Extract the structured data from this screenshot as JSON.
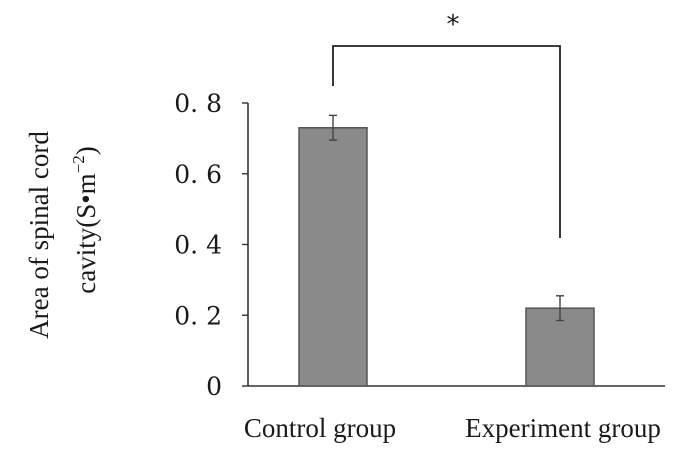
{
  "chart_data": {
    "type": "bar",
    "categories": [
      "Control group",
      "Experiment group"
    ],
    "values": [
      0.73,
      0.22
    ],
    "errors": [
      0.035,
      0.035
    ],
    "ylim": [
      0,
      0.8
    ],
    "yticks": [
      {
        "value": 0,
        "label": "0"
      },
      {
        "value": 0.2,
        "label": "0. 2"
      },
      {
        "value": 0.4,
        "label": "0. 4"
      },
      {
        "value": 0.6,
        "label": "0. 6"
      },
      {
        "value": 0.8,
        "label": "0. 8"
      }
    ],
    "ylabel_line1": "Area of spinal cord",
    "ylabel_line2": "cavity(S•m",
    "ylabel_sup": "−2",
    "ylabel_close": ")",
    "xlabel": "",
    "title": "",
    "significance": {
      "between": [
        "Control group",
        "Experiment group"
      ],
      "mark": "*"
    },
    "bar_color": "#8a8a8a",
    "bar_edge_color": "#555555"
  }
}
